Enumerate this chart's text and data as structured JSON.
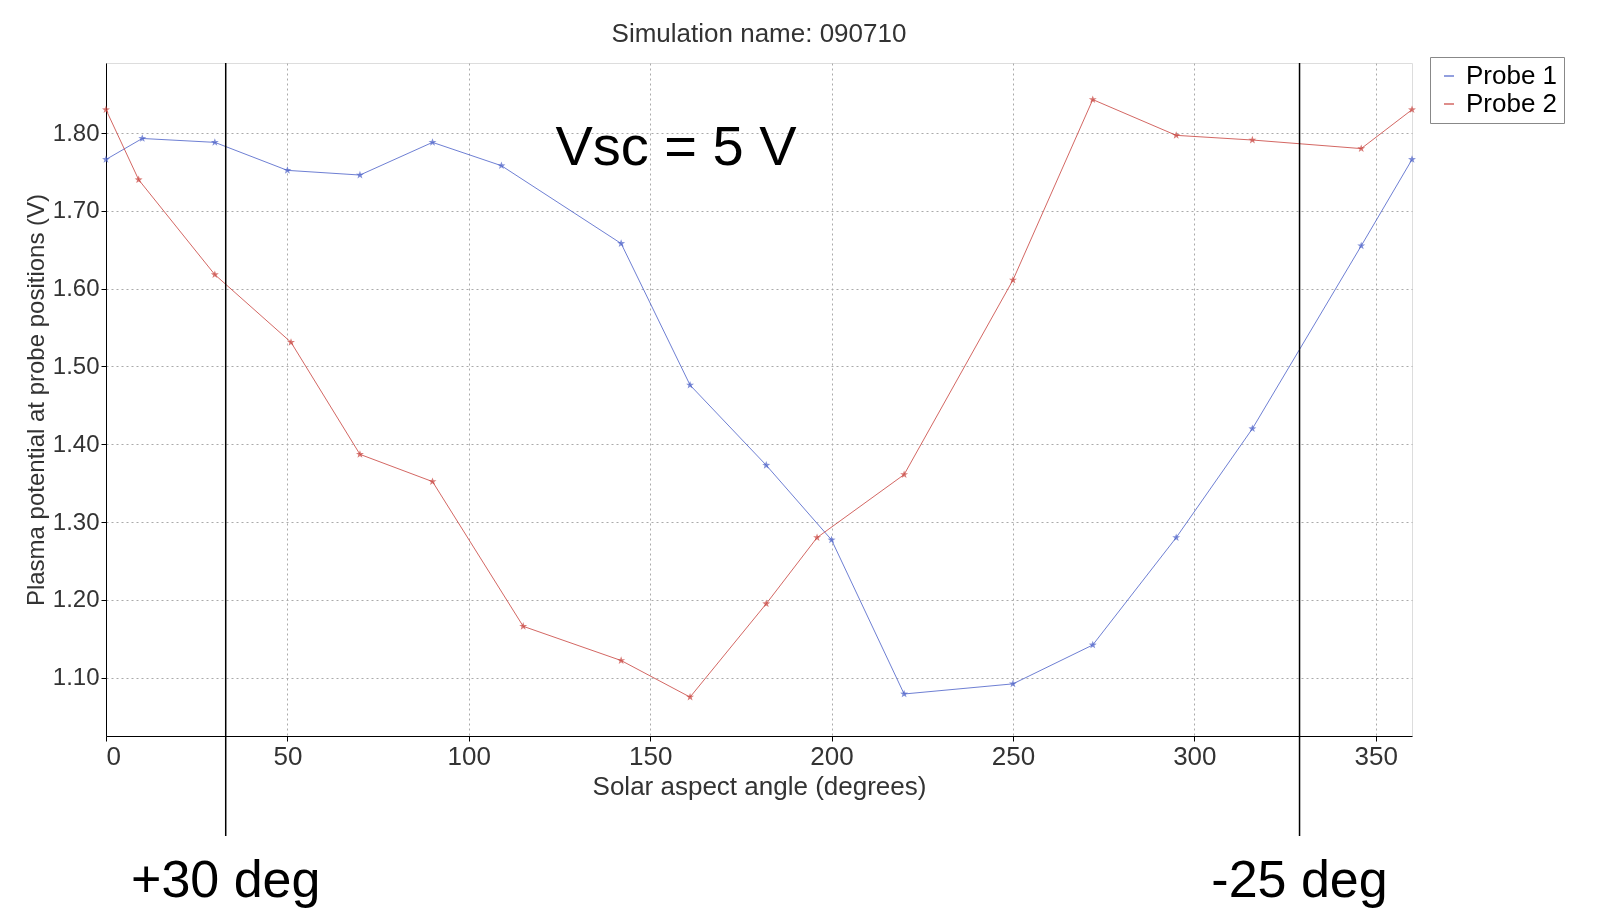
{
  "chart_data": {
    "type": "line",
    "title": "Simulation name: 090710",
    "xlabel": "Solar aspect angle (degrees)",
    "ylabel": "Plasma potential at probe positions (V)",
    "xlim": [
      0,
      360
    ],
    "xticks": [
      0,
      50,
      100,
      150,
      200,
      250,
      300,
      350
    ],
    "ylim": [
      1.025,
      1.89
    ],
    "yticks": [
      {
        "value": 1.1,
        "label": "1.10"
      },
      {
        "value": 1.2,
        "label": "1.20"
      },
      {
        "value": 1.3,
        "label": "1.30"
      },
      {
        "value": 1.4,
        "label": "1.40"
      },
      {
        "value": 1.5,
        "label": "1.50"
      },
      {
        "value": 1.6,
        "label": "1.60"
      },
      {
        "value": 1.7,
        "label": "1.70"
      },
      {
        "value": 1.8,
        "label": "1.80"
      }
    ],
    "grid": true,
    "legend": "top right",
    "marker": "star",
    "line_style": "solid",
    "annotations": [
      "Vsc = 5 V"
    ],
    "ref_lines": [
      {
        "axis": "x",
        "value": 33,
        "label": "+30 deg",
        "color": "#000000"
      },
      {
        "axis": "x",
        "value": 329,
        "label": "-25 deg",
        "color": "#000000"
      }
    ],
    "series": [
      {
        "name": "Probe 1",
        "color": "#4a5fc8",
        "x": [
          0,
          10,
          30,
          50,
          70,
          90,
          109,
          142,
          161,
          182,
          200,
          220,
          250,
          272,
          295,
          316,
          346,
          360
        ],
        "values": [
          1.766,
          1.793,
          1.788,
          1.752,
          1.746,
          1.788,
          1.758,
          1.658,
          1.476,
          1.373,
          1.277,
          1.079,
          1.092,
          1.142,
          1.28,
          1.42,
          1.655,
          1.766
        ]
      },
      {
        "name": "Probe 2",
        "color": "#c8413c",
        "x": [
          0,
          9,
          30,
          51,
          70,
          90,
          115,
          142,
          161,
          182,
          196,
          220,
          250,
          272,
          295,
          316,
          346,
          360
        ],
        "values": [
          1.83,
          1.74,
          1.618,
          1.531,
          1.387,
          1.352,
          1.166,
          1.122,
          1.075,
          1.195,
          1.28,
          1.361,
          1.611,
          1.843,
          1.797,
          1.791,
          1.78,
          1.83
        ]
      }
    ]
  }
}
